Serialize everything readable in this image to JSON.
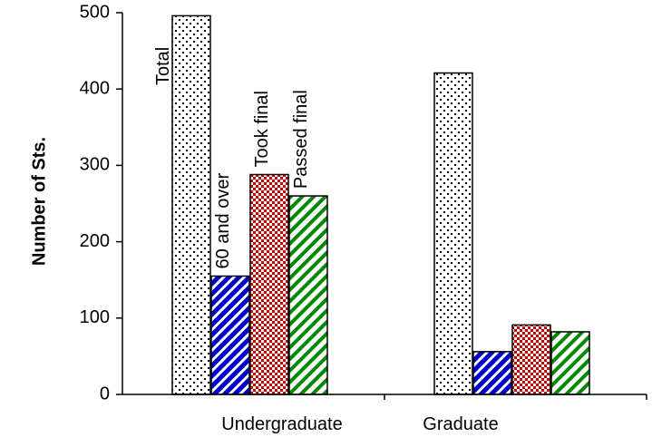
{
  "chart_data": {
    "type": "bar",
    "title": "",
    "xlabel": "",
    "ylabel": "Number of Sts.",
    "ylim": [
      0,
      500
    ],
    "yticks": [
      0,
      100,
      200,
      300,
      400,
      500
    ],
    "grid": false,
    "legend": "none",
    "categories": [
      "Undergraduate",
      "Graduate"
    ],
    "series": [
      {
        "name": "Total",
        "values": [
          496,
          421
        ],
        "pattern": "dots",
        "color": "#000000"
      },
      {
        "name": "60 and over",
        "values": [
          155,
          56
        ],
        "pattern": "diagonal-stripes",
        "color": "#0000cc"
      },
      {
        "name": "Took final",
        "values": [
          288,
          91
        ],
        "pattern": "checker",
        "color": "#cc0000"
      },
      {
        "name": "Passed final",
        "values": [
          260,
          82
        ],
        "pattern": "diagonal-stripes",
        "color": "#008800"
      }
    ]
  }
}
